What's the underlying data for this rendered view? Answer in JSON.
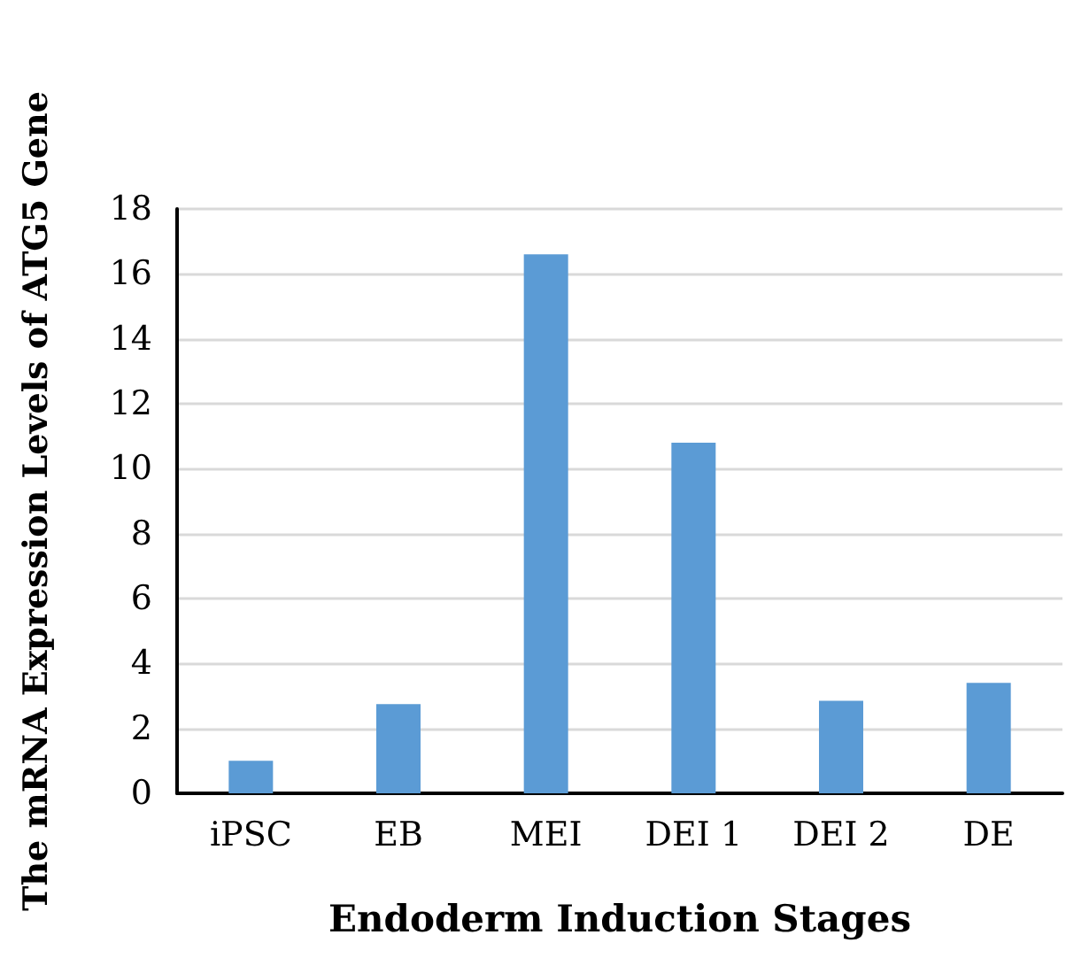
{
  "chart_data": {
    "type": "bar",
    "xlabel": "Endoderm Induction Stages",
    "ylabel": "The mRNA Expression Levels of ATG5 Gene",
    "categories": [
      "iPSC",
      "EB",
      "MEI",
      "DEI 1",
      "DEI 2",
      "DE"
    ],
    "values": [
      1.0,
      2.75,
      16.6,
      10.8,
      2.85,
      3.4
    ],
    "color": "#5b9bd5",
    "ylim": [
      0,
      18
    ],
    "yticks": [
      0,
      2,
      4,
      6,
      8,
      10,
      12,
      14,
      16,
      18
    ],
    "grid": "y"
  }
}
